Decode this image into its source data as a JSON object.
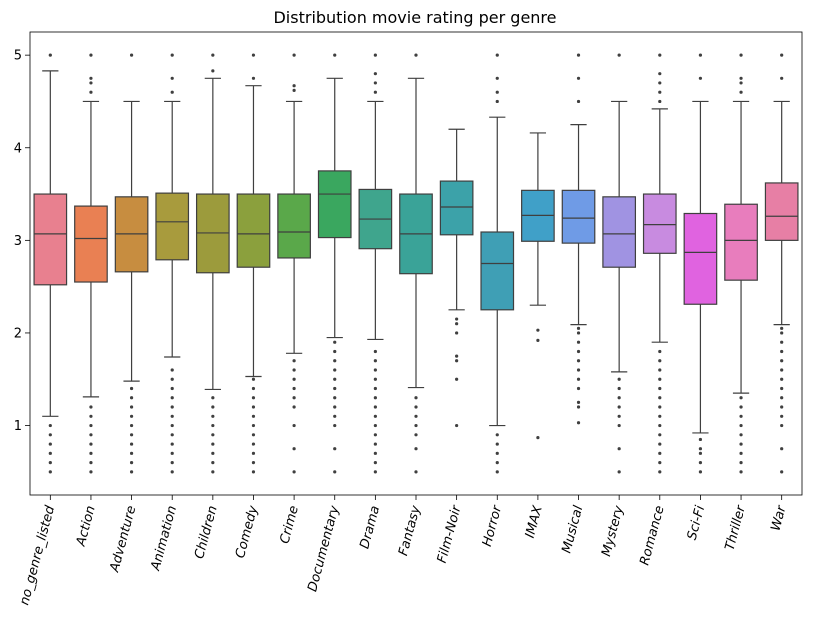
{
  "chart_data": {
    "type": "boxplot",
    "title": "Distribution movie rating per genre",
    "xlabel": "",
    "ylabel": "",
    "ylim": [
      0.25,
      5.25
    ],
    "yticks": [
      1,
      2,
      3,
      4,
      5
    ],
    "grid": false,
    "legend": "none",
    "categories": [
      "no_genre_listed",
      "Action",
      "Adventure",
      "Animation",
      "Children",
      "Comedy",
      "Crime",
      "Documentary",
      "Drama",
      "Fantasy",
      "Film-Noir",
      "Horror",
      "IMAX",
      "Musical",
      "Mystery",
      "Romance",
      "Sci-Fi",
      "Thriller",
      "War"
    ],
    "colors": [
      "#e8808f",
      "#e98053",
      "#c78d40",
      "#a89b3d",
      "#9c9b3c",
      "#8ba03d",
      "#5aa84a",
      "#3aa75f",
      "#3fa58d",
      "#3aa398",
      "#3ca2a9",
      "#3f9fb5",
      "#40a0c8",
      "#6f9be6",
      "#a093e2",
      "#c88be0",
      "#e063e0",
      "#e87dbd",
      "#e77fa5"
    ],
    "series": [
      {
        "name": "no_genre_listed",
        "min": 1.1,
        "q1": 2.52,
        "median": 3.07,
        "q3": 3.5,
        "max": 4.83,
        "outliers": [
          0.5,
          0.6,
          0.7,
          0.8,
          0.9,
          1.0,
          5.0
        ]
      },
      {
        "name": "Action",
        "min": 1.31,
        "q1": 2.55,
        "median": 3.02,
        "q3": 3.37,
        "max": 4.5,
        "outliers": [
          0.5,
          0.6,
          0.7,
          0.8,
          0.9,
          1.0,
          1.1,
          1.2,
          4.6,
          4.7,
          4.75,
          5.0
        ]
      },
      {
        "name": "Adventure",
        "min": 1.48,
        "q1": 2.66,
        "median": 3.07,
        "q3": 3.47,
        "max": 4.5,
        "outliers": [
          0.5,
          0.6,
          0.7,
          0.8,
          0.9,
          1.0,
          1.1,
          1.2,
          1.3,
          1.4,
          5.0
        ]
      },
      {
        "name": "Animation",
        "min": 1.74,
        "q1": 2.79,
        "median": 3.2,
        "q3": 3.51,
        "max": 4.5,
        "outliers": [
          0.5,
          0.6,
          0.7,
          0.8,
          0.9,
          1.0,
          1.1,
          1.2,
          1.3,
          1.4,
          1.5,
          1.6,
          4.6,
          4.75,
          5.0
        ]
      },
      {
        "name": "Children",
        "min": 1.39,
        "q1": 2.65,
        "median": 3.08,
        "q3": 3.5,
        "max": 4.75,
        "outliers": [
          0.5,
          0.6,
          0.7,
          0.8,
          0.9,
          1.0,
          1.1,
          1.2,
          1.3,
          4.83,
          5.0
        ]
      },
      {
        "name": "Comedy",
        "min": 1.53,
        "q1": 2.71,
        "median": 3.07,
        "q3": 3.5,
        "max": 4.67,
        "outliers": [
          0.5,
          0.6,
          0.7,
          0.8,
          0.9,
          1.0,
          1.1,
          1.2,
          1.3,
          1.4,
          1.5,
          4.75,
          5.0
        ]
      },
      {
        "name": "Crime",
        "min": 1.78,
        "q1": 2.81,
        "median": 3.09,
        "q3": 3.5,
        "max": 4.5,
        "outliers": [
          0.5,
          0.75,
          1.0,
          1.2,
          1.3,
          1.4,
          1.5,
          1.6,
          1.7,
          4.62,
          4.67,
          5.0
        ]
      },
      {
        "name": "Documentary",
        "min": 1.95,
        "q1": 3.03,
        "median": 3.5,
        "q3": 3.75,
        "max": 4.75,
        "outliers": [
          0.5,
          0.75,
          1.0,
          1.1,
          1.2,
          1.3,
          1.4,
          1.5,
          1.6,
          1.7,
          1.8,
          1.9,
          5.0
        ]
      },
      {
        "name": "Drama",
        "min": 1.93,
        "q1": 2.91,
        "median": 3.23,
        "q3": 3.55,
        "max": 4.5,
        "outliers": [
          0.5,
          0.6,
          0.7,
          0.8,
          0.9,
          1.0,
          1.1,
          1.2,
          1.3,
          1.4,
          1.5,
          1.6,
          1.7,
          1.8,
          4.6,
          4.7,
          4.8,
          5.0
        ]
      },
      {
        "name": "Fantasy",
        "min": 1.41,
        "q1": 2.64,
        "median": 3.07,
        "q3": 3.5,
        "max": 4.75,
        "outliers": [
          0.5,
          0.75,
          0.9,
          1.0,
          1.1,
          1.2,
          1.3,
          5.0
        ]
      },
      {
        "name": "Film-Noir",
        "min": 2.25,
        "q1": 3.06,
        "median": 3.36,
        "q3": 3.64,
        "max": 4.2,
        "outliers": [
          1.0,
          1.5,
          1.7,
          1.75,
          2.0,
          2.1,
          2.15
        ]
      },
      {
        "name": "Horror",
        "min": 1.0,
        "q1": 2.25,
        "median": 2.75,
        "q3": 3.09,
        "max": 4.33,
        "outliers": [
          0.5,
          0.6,
          0.7,
          0.8,
          0.9,
          4.5,
          4.6,
          4.75,
          5.0
        ]
      },
      {
        "name": "IMAX",
        "min": 2.3,
        "q1": 2.99,
        "median": 3.27,
        "q3": 3.54,
        "max": 4.16,
        "outliers": [
          0.87,
          1.92,
          2.03
        ]
      },
      {
        "name": "Musical",
        "min": 2.09,
        "q1": 2.97,
        "median": 3.24,
        "q3": 3.54,
        "max": 4.25,
        "outliers": [
          1.03,
          1.2,
          1.25,
          1.4,
          1.5,
          1.6,
          1.7,
          1.8,
          1.9,
          2.0,
          2.05,
          4.5,
          4.75,
          5.0
        ]
      },
      {
        "name": "Mystery",
        "min": 1.58,
        "q1": 2.71,
        "median": 3.07,
        "q3": 3.47,
        "max": 4.5,
        "outliers": [
          0.5,
          0.75,
          1.0,
          1.1,
          1.2,
          1.3,
          1.4,
          1.5,
          5.0
        ]
      },
      {
        "name": "Romance",
        "min": 1.9,
        "q1": 2.86,
        "median": 3.17,
        "q3": 3.5,
        "max": 4.42,
        "outliers": [
          0.5,
          0.6,
          0.7,
          0.8,
          0.9,
          1.0,
          1.1,
          1.2,
          1.3,
          1.4,
          1.5,
          1.6,
          1.7,
          1.8,
          4.5,
          4.6,
          4.7,
          4.8,
          5.0
        ]
      },
      {
        "name": "Sci-Fi",
        "min": 0.92,
        "q1": 2.31,
        "median": 2.87,
        "q3": 3.29,
        "max": 4.5,
        "outliers": [
          0.5,
          0.6,
          0.7,
          0.75,
          0.85,
          4.75,
          5.0
        ]
      },
      {
        "name": "Thriller",
        "min": 1.35,
        "q1": 2.57,
        "median": 3.0,
        "q3": 3.39,
        "max": 4.5,
        "outliers": [
          0.5,
          0.6,
          0.7,
          0.8,
          0.9,
          1.0,
          1.1,
          1.2,
          1.3,
          4.6,
          4.7,
          4.75,
          5.0
        ]
      },
      {
        "name": "War",
        "min": 2.09,
        "q1": 3.0,
        "median": 3.26,
        "q3": 3.62,
        "max": 4.5,
        "outliers": [
          0.5,
          0.75,
          1.0,
          1.1,
          1.2,
          1.3,
          1.4,
          1.5,
          1.6,
          1.7,
          1.8,
          1.9,
          2.0,
          2.05,
          4.75,
          5.0
        ]
      }
    ]
  }
}
